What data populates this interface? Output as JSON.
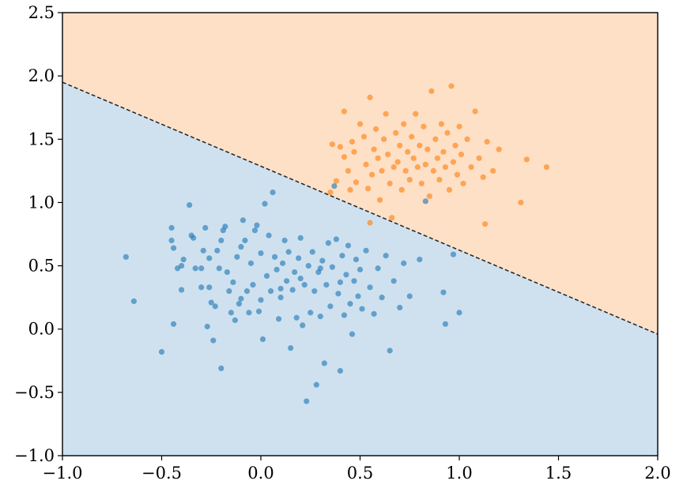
{
  "chart_data": {
    "type": "scatter",
    "title": "",
    "xlabel": "",
    "ylabel": "",
    "xlim": [
      -1.0,
      2.0
    ],
    "ylim": [
      -1.0,
      2.5
    ],
    "grid": false,
    "x_ticks": [
      "−1.0",
      "−0.5",
      "0.0",
      "0.5",
      "1.0",
      "1.5",
      "2.0"
    ],
    "y_ticks": [
      "−1.0",
      "−0.5",
      "0.0",
      "0.5",
      "1.0",
      "1.5",
      "2.0",
      "2.5"
    ],
    "decision_boundary": {
      "style": "dashed",
      "color": "#222222",
      "points": [
        [
          -1.0,
          1.95
        ],
        [
          2.0,
          -0.04
        ]
      ]
    },
    "regions": [
      {
        "side": "above",
        "color": "#fde0c6"
      },
      {
        "side": "below",
        "color": "#cfe1ef"
      }
    ],
    "series": [
      {
        "color": "#1f77b4",
        "points": [
          [
            -0.68,
            0.57
          ],
          [
            -0.64,
            0.22
          ],
          [
            -0.5,
            -0.18
          ],
          [
            -0.45,
            0.8
          ],
          [
            -0.45,
            0.7
          ],
          [
            -0.44,
            0.64
          ],
          [
            -0.44,
            0.04
          ],
          [
            -0.42,
            0.48
          ],
          [
            -0.4,
            0.5
          ],
          [
            -0.4,
            0.31
          ],
          [
            -0.39,
            0.55
          ],
          [
            -0.36,
            0.98
          ],
          [
            -0.35,
            0.74
          ],
          [
            -0.34,
            0.72
          ],
          [
            -0.33,
            0.48
          ],
          [
            -0.3,
            0.48
          ],
          [
            -0.29,
            0.62
          ],
          [
            -0.28,
            0.8
          ],
          [
            -0.27,
            0.02
          ],
          [
            -0.26,
            0.56
          ],
          [
            -0.26,
            0.33
          ],
          [
            -0.25,
            0.21
          ],
          [
            -0.24,
            -0.09
          ],
          [
            -0.23,
            0.18
          ],
          [
            -0.22,
            0.62
          ],
          [
            -0.21,
            0.48
          ],
          [
            -0.2,
            -0.31
          ],
          [
            -0.2,
            0.7
          ],
          [
            -0.19,
            0.78
          ],
          [
            -0.18,
            0.81
          ],
          [
            -0.17,
            0.45
          ],
          [
            -0.16,
            0.3
          ],
          [
            -0.15,
            0.13
          ],
          [
            -0.14,
            0.37
          ],
          [
            -0.13,
            0.07
          ],
          [
            -0.12,
            0.57
          ],
          [
            -0.11,
            0.2
          ],
          [
            -0.1,
            0.65
          ],
          [
            -0.09,
            0.86
          ],
          [
            -0.08,
            0.7
          ],
          [
            -0.07,
            0.3
          ],
          [
            -0.06,
            0.13
          ],
          [
            -0.05,
            0.52
          ],
          [
            -0.04,
            0.35
          ],
          [
            -0.03,
            0.78
          ],
          [
            -0.02,
            0.82
          ],
          [
            -0.01,
            0.14
          ],
          [
            0.0,
            0.6
          ],
          [
            0.0,
            0.23
          ],
          [
            0.01,
            -0.08
          ],
          [
            0.02,
            0.99
          ],
          [
            0.03,
            0.42
          ],
          [
            0.04,
            0.74
          ],
          [
            0.05,
            0.3
          ],
          [
            0.06,
            1.08
          ],
          [
            0.07,
            0.57
          ],
          [
            0.08,
            0.47
          ],
          [
            0.09,
            0.08
          ],
          [
            0.1,
            0.25
          ],
          [
            0.11,
            0.52
          ],
          [
            0.12,
            0.7
          ],
          [
            0.13,
            0.38
          ],
          [
            0.14,
            0.61
          ],
          [
            0.15,
            -0.15
          ],
          [
            0.16,
            0.31
          ],
          [
            0.17,
            0.45
          ],
          [
            0.18,
            0.09
          ],
          [
            0.19,
            0.56
          ],
          [
            0.2,
            0.72
          ],
          [
            0.21,
            0.03
          ],
          [
            0.22,
            0.35
          ],
          [
            0.23,
            -0.57
          ],
          [
            0.24,
            0.5
          ],
          [
            0.25,
            0.13
          ],
          [
            0.26,
            0.61
          ],
          [
            0.27,
            0.3
          ],
          [
            0.28,
            -0.44
          ],
          [
            0.29,
            0.45
          ],
          [
            0.3,
            0.1
          ],
          [
            0.31,
            0.54
          ],
          [
            0.32,
            -0.27
          ],
          [
            0.33,
            0.35
          ],
          [
            0.34,
            0.68
          ],
          [
            0.35,
            0.18
          ],
          [
            0.36,
            0.49
          ],
          [
            0.37,
            1.13
          ],
          [
            0.38,
            0.71
          ],
          [
            0.39,
            0.28
          ],
          [
            0.4,
            -0.33
          ],
          [
            0.41,
            0.58
          ],
          [
            0.42,
            0.11
          ],
          [
            0.43,
            0.43
          ],
          [
            0.44,
            0.66
          ],
          [
            0.45,
            0.2
          ],
          [
            0.46,
            -0.04
          ],
          [
            0.47,
            0.38
          ],
          [
            0.48,
            0.55
          ],
          [
            0.49,
            0.26
          ],
          [
            0.5,
            0.47
          ],
          [
            0.51,
            0.16
          ],
          [
            0.53,
            0.62
          ],
          [
            0.55,
            0.33
          ],
          [
            0.57,
            0.12
          ],
          [
            0.59,
            0.48
          ],
          [
            0.61,
            0.25
          ],
          [
            0.63,
            0.58
          ],
          [
            0.65,
            -0.17
          ],
          [
            0.67,
            0.38
          ],
          [
            0.7,
            0.17
          ],
          [
            0.72,
            0.52
          ],
          [
            0.75,
            0.26
          ],
          [
            0.8,
            0.55
          ],
          [
            0.83,
            1.01
          ],
          [
            0.92,
            0.29
          ],
          [
            0.93,
            0.04
          ],
          [
            0.97,
            0.59
          ],
          [
            1.0,
            0.13
          ],
          [
            -0.3,
            0.33
          ],
          [
            -0.1,
            0.24
          ],
          [
            0.1,
            0.32
          ],
          [
            0.2,
            0.4
          ],
          [
            0.3,
            0.48
          ],
          [
            0.4,
            0.37
          ]
        ]
      },
      {
        "color": "#ff7f0e",
        "points": [
          [
            0.35,
            1.08
          ],
          [
            0.36,
            1.46
          ],
          [
            0.38,
            1.17
          ],
          [
            0.4,
            1.44
          ],
          [
            0.42,
            1.36
          ],
          [
            0.42,
            1.72
          ],
          [
            0.44,
            1.25
          ],
          [
            0.45,
            1.1
          ],
          [
            0.46,
            1.48
          ],
          [
            0.47,
            1.4
          ],
          [
            0.48,
            1.16
          ],
          [
            0.5,
            1.62
          ],
          [
            0.52,
            1.52
          ],
          [
            0.53,
            1.3
          ],
          [
            0.54,
            1.11
          ],
          [
            0.55,
            1.83
          ],
          [
            0.56,
            1.22
          ],
          [
            0.57,
            1.42
          ],
          [
            0.58,
            1.58
          ],
          [
            0.59,
            1.35
          ],
          [
            0.6,
            1.02
          ],
          [
            0.61,
            1.25
          ],
          [
            0.62,
            1.5
          ],
          [
            0.63,
            1.7
          ],
          [
            0.64,
            1.38
          ],
          [
            0.65,
            1.15
          ],
          [
            0.66,
            0.88
          ],
          [
            0.67,
            1.28
          ],
          [
            0.68,
            1.55
          ],
          [
            0.69,
            1.32
          ],
          [
            0.7,
            1.45
          ],
          [
            0.71,
            1.1
          ],
          [
            0.72,
            1.62
          ],
          [
            0.73,
            1.25
          ],
          [
            0.74,
            1.4
          ],
          [
            0.75,
            1.18
          ],
          [
            0.76,
            1.52
          ],
          [
            0.77,
            1.35
          ],
          [
            0.78,
            1.7
          ],
          [
            0.79,
            1.28
          ],
          [
            0.8,
            1.45
          ],
          [
            0.81,
            1.15
          ],
          [
            0.82,
            1.6
          ],
          [
            0.83,
            1.3
          ],
          [
            0.84,
            1.42
          ],
          [
            0.85,
            1.05
          ],
          [
            0.86,
            1.88
          ],
          [
            0.87,
            1.25
          ],
          [
            0.88,
            1.5
          ],
          [
            0.89,
            1.35
          ],
          [
            0.9,
            1.18
          ],
          [
            0.91,
            1.62
          ],
          [
            0.92,
            1.4
          ],
          [
            0.93,
            1.28
          ],
          [
            0.94,
            1.55
          ],
          [
            0.95,
            1.1
          ],
          [
            0.96,
            1.92
          ],
          [
            0.97,
            1.32
          ],
          [
            0.98,
            1.45
          ],
          [
            0.99,
            1.22
          ],
          [
            1.0,
            1.6
          ],
          [
            1.01,
            1.38
          ],
          [
            1.02,
            1.15
          ],
          [
            1.04,
            1.5
          ],
          [
            1.06,
            1.28
          ],
          [
            1.08,
            1.72
          ],
          [
            1.1,
            1.35
          ],
          [
            1.12,
            1.2
          ],
          [
            1.14,
            1.48
          ],
          [
            1.17,
            1.25
          ],
          [
            1.2,
            1.42
          ],
          [
            1.13,
            0.83
          ],
          [
            1.31,
            1.0
          ],
          [
            1.34,
            1.34
          ],
          [
            1.44,
            1.28
          ],
          [
            0.55,
            0.84
          ]
        ]
      }
    ]
  }
}
